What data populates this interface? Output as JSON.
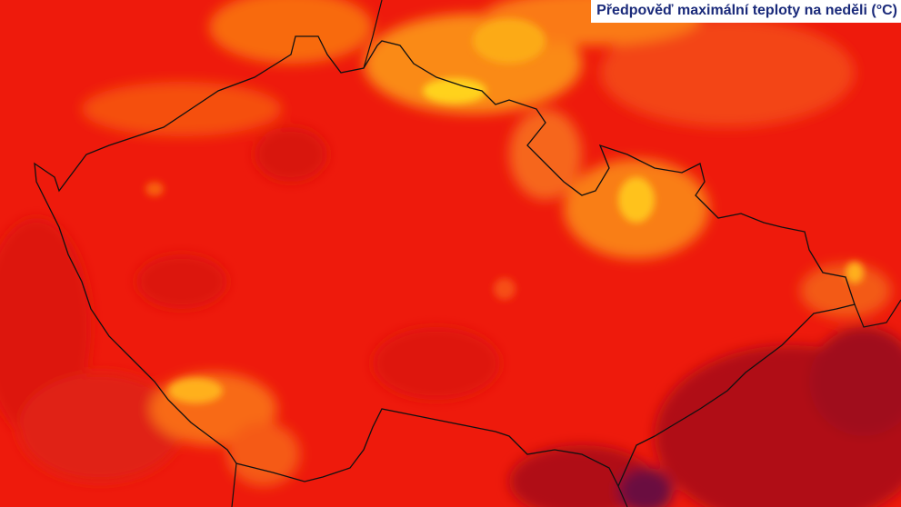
{
  "title": "Předpověď maximální teploty na neděli (°C)"
}
